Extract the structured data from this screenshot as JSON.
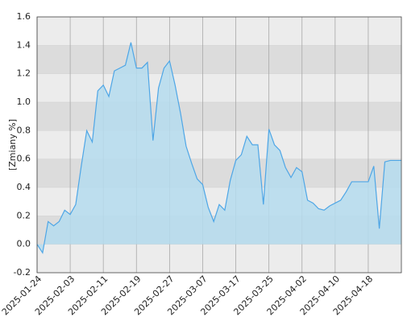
{
  "chart_data": {
    "type": "area",
    "y_label": "[Zmiany %]",
    "categories": [
      "2025-01-24",
      null,
      null,
      null,
      null,
      null,
      "2025-02-03",
      null,
      null,
      null,
      null,
      null,
      "2025-02-11",
      null,
      null,
      null,
      null,
      null,
      "2025-02-19",
      null,
      null,
      null,
      null,
      null,
      "2025-02-27",
      null,
      null,
      null,
      null,
      null,
      "2025-03-07",
      null,
      null,
      null,
      null,
      null,
      "2025-03-17",
      null,
      null,
      null,
      null,
      null,
      "2025-03-25",
      null,
      null,
      null,
      null,
      null,
      "2025-04-02",
      null,
      null,
      null,
      null,
      null,
      "2025-04-10",
      null,
      null,
      null,
      null,
      null,
      "2025-04-18",
      null,
      null,
      null,
      null,
      null,
      null
    ],
    "values": [
      0.0,
      -0.06,
      0.16,
      0.13,
      0.16,
      0.24,
      0.21,
      0.28,
      0.55,
      0.8,
      0.72,
      1.08,
      1.12,
      1.04,
      1.22,
      1.24,
      1.26,
      1.42,
      1.24,
      1.24,
      1.28,
      0.73,
      1.1,
      1.24,
      1.29,
      1.12,
      0.92,
      0.69,
      0.57,
      0.46,
      0.42,
      0.26,
      0.16,
      0.28,
      0.24,
      0.45,
      0.59,
      0.63,
      0.76,
      0.7,
      0.7,
      0.28,
      0.81,
      0.7,
      0.66,
      0.54,
      0.47,
      0.54,
      0.51,
      0.31,
      0.29,
      0.25,
      0.24,
      0.27,
      0.29,
      0.31,
      0.37,
      0.44,
      0.44,
      0.44,
      0.44,
      0.55,
      0.11,
      0.58,
      0.59,
      0.59,
      0.59
    ],
    "color": "#4ea6e6",
    "fill": "#b5dcee",
    "ylim": [
      -0.2,
      1.6
    ],
    "yticks": [
      -0.2,
      {
        "value": 0,
        "label": "0.0"
      },
      0.2,
      0.4,
      0.6,
      0.8,
      {
        "value": 1,
        "label": "1.0"
      },
      1.2,
      1.4,
      1.6
    ],
    "grid": true
  }
}
